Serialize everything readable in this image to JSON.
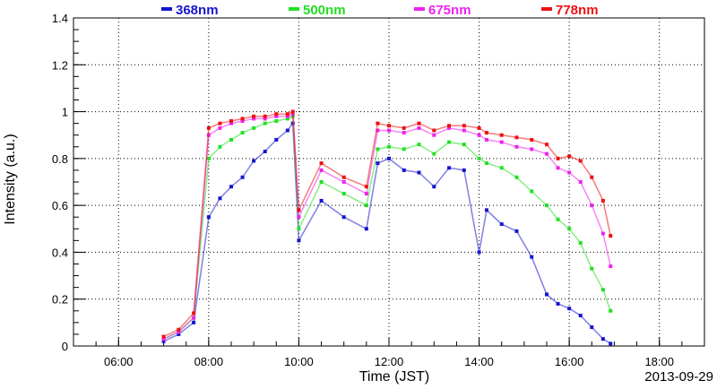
{
  "chart_data": {
    "type": "scatter",
    "xlabel": "Time (JST)",
    "ylabel": "Intensity (a.u.)",
    "date": "2013-09-29",
    "xlim": [
      "05:00",
      "19:00"
    ],
    "ylim": [
      0,
      1.4
    ],
    "xticks": [
      "06:00",
      "08:00",
      "10:00",
      "12:00",
      "14:00",
      "16:00",
      "18:00"
    ],
    "yticks": [
      "0",
      "0.2",
      "0.4",
      "0.6",
      "0.8",
      "1",
      "1.2",
      "1.4"
    ],
    "grid": true,
    "legend_position": "top",
    "series": [
      {
        "name": "368nm",
        "color": "#1515d0",
        "points": [
          [
            "07:00",
            0.02
          ],
          [
            "07:20",
            0.05
          ],
          [
            "07:40",
            0.1
          ],
          [
            "08:00",
            0.55
          ],
          [
            "08:15",
            0.63
          ],
          [
            "08:30",
            0.68
          ],
          [
            "08:45",
            0.72
          ],
          [
            "09:00",
            0.79
          ],
          [
            "09:15",
            0.83
          ],
          [
            "09:30",
            0.88
          ],
          [
            "09:45",
            0.92
          ],
          [
            "09:52",
            0.95
          ],
          [
            "10:00",
            0.45
          ],
          [
            "10:30",
            0.62
          ],
          [
            "11:00",
            0.55
          ],
          [
            "11:30",
            0.5
          ],
          [
            "11:45",
            0.78
          ],
          [
            "12:00",
            0.8
          ],
          [
            "12:20",
            0.75
          ],
          [
            "12:40",
            0.74
          ],
          [
            "13:00",
            0.68
          ],
          [
            "13:20",
            0.76
          ],
          [
            "13:40",
            0.75
          ],
          [
            "14:00",
            0.4
          ],
          [
            "14:10",
            0.58
          ],
          [
            "14:30",
            0.52
          ],
          [
            "14:50",
            0.49
          ],
          [
            "15:10",
            0.38
          ],
          [
            "15:30",
            0.22
          ],
          [
            "15:45",
            0.18
          ],
          [
            "16:00",
            0.16
          ],
          [
            "16:15",
            0.13
          ],
          [
            "16:30",
            0.08
          ],
          [
            "16:45",
            0.03
          ],
          [
            "16:55",
            0.01
          ]
        ]
      },
      {
        "name": "500nm",
        "color": "#22e022",
        "points": [
          [
            "07:00",
            0.03
          ],
          [
            "07:20",
            0.06
          ],
          [
            "07:40",
            0.12
          ],
          [
            "08:00",
            0.8
          ],
          [
            "08:15",
            0.85
          ],
          [
            "08:30",
            0.88
          ],
          [
            "08:45",
            0.91
          ],
          [
            "09:00",
            0.93
          ],
          [
            "09:15",
            0.95
          ],
          [
            "09:30",
            0.96
          ],
          [
            "09:45",
            0.97
          ],
          [
            "09:52",
            0.98
          ],
          [
            "10:00",
            0.5
          ],
          [
            "10:30",
            0.7
          ],
          [
            "11:00",
            0.65
          ],
          [
            "11:30",
            0.6
          ],
          [
            "11:45",
            0.84
          ],
          [
            "12:00",
            0.85
          ],
          [
            "12:20",
            0.84
          ],
          [
            "12:40",
            0.86
          ],
          [
            "13:00",
            0.82
          ],
          [
            "13:20",
            0.87
          ],
          [
            "13:40",
            0.86
          ],
          [
            "14:00",
            0.8
          ],
          [
            "14:10",
            0.78
          ],
          [
            "14:30",
            0.76
          ],
          [
            "14:50",
            0.72
          ],
          [
            "15:10",
            0.66
          ],
          [
            "15:30",
            0.6
          ],
          [
            "15:45",
            0.54
          ],
          [
            "16:00",
            0.5
          ],
          [
            "16:15",
            0.44
          ],
          [
            "16:30",
            0.33
          ],
          [
            "16:45",
            0.24
          ],
          [
            "16:55",
            0.15
          ]
        ]
      },
      {
        "name": "675nm",
        "color": "#ef22ef",
        "points": [
          [
            "07:00",
            0.03
          ],
          [
            "07:20",
            0.06
          ],
          [
            "07:40",
            0.12
          ],
          [
            "08:00",
            0.9
          ],
          [
            "08:15",
            0.93
          ],
          [
            "08:30",
            0.95
          ],
          [
            "08:45",
            0.96
          ],
          [
            "09:00",
            0.97
          ],
          [
            "09:15",
            0.97
          ],
          [
            "09:30",
            0.98
          ],
          [
            "09:45",
            0.98
          ],
          [
            "09:52",
            0.99
          ],
          [
            "10:00",
            0.55
          ],
          [
            "10:30",
            0.75
          ],
          [
            "11:00",
            0.7
          ],
          [
            "11:30",
            0.65
          ],
          [
            "11:45",
            0.92
          ],
          [
            "12:00",
            0.92
          ],
          [
            "12:20",
            0.91
          ],
          [
            "12:40",
            0.93
          ],
          [
            "13:00",
            0.9
          ],
          [
            "13:20",
            0.93
          ],
          [
            "13:40",
            0.92
          ],
          [
            "14:00",
            0.9
          ],
          [
            "14:10",
            0.88
          ],
          [
            "14:30",
            0.87
          ],
          [
            "14:50",
            0.85
          ],
          [
            "15:10",
            0.84
          ],
          [
            "15:30",
            0.82
          ],
          [
            "15:45",
            0.76
          ],
          [
            "16:00",
            0.74
          ],
          [
            "16:15",
            0.7
          ],
          [
            "16:30",
            0.6
          ],
          [
            "16:45",
            0.48
          ],
          [
            "16:55",
            0.34
          ]
        ]
      },
      {
        "name": "778nm",
        "color": "#ee1111",
        "points": [
          [
            "07:00",
            0.04
          ],
          [
            "07:20",
            0.07
          ],
          [
            "07:40",
            0.14
          ],
          [
            "08:00",
            0.93
          ],
          [
            "08:15",
            0.95
          ],
          [
            "08:30",
            0.96
          ],
          [
            "08:45",
            0.97
          ],
          [
            "09:00",
            0.98
          ],
          [
            "09:15",
            0.98
          ],
          [
            "09:30",
            0.99
          ],
          [
            "09:45",
            0.99
          ],
          [
            "09:52",
            1.0
          ],
          [
            "10:00",
            0.58
          ],
          [
            "10:30",
            0.78
          ],
          [
            "11:00",
            0.72
          ],
          [
            "11:30",
            0.68
          ],
          [
            "11:45",
            0.95
          ],
          [
            "12:00",
            0.94
          ],
          [
            "12:20",
            0.93
          ],
          [
            "12:40",
            0.95
          ],
          [
            "13:00",
            0.92
          ],
          [
            "13:20",
            0.94
          ],
          [
            "13:40",
            0.94
          ],
          [
            "14:00",
            0.93
          ],
          [
            "14:10",
            0.91
          ],
          [
            "14:30",
            0.9
          ],
          [
            "14:50",
            0.89
          ],
          [
            "15:10",
            0.88
          ],
          [
            "15:30",
            0.86
          ],
          [
            "15:45",
            0.8
          ],
          [
            "16:00",
            0.81
          ],
          [
            "16:15",
            0.79
          ],
          [
            "16:30",
            0.72
          ],
          [
            "16:45",
            0.62
          ],
          [
            "16:55",
            0.47
          ]
        ]
      }
    ]
  }
}
